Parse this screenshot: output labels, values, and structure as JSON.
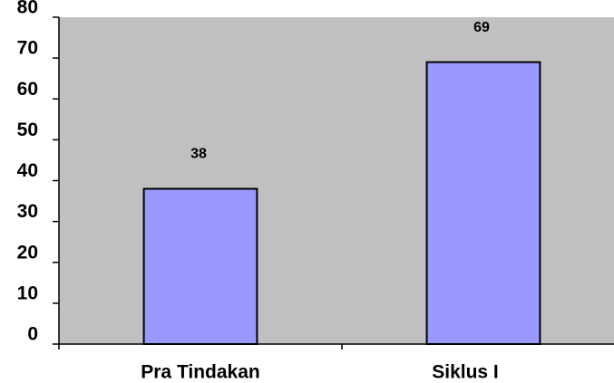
{
  "chart_data": {
    "type": "bar",
    "categories": [
      "Pra Tindakan",
      "Siklus I"
    ],
    "values": [
      38,
      69
    ],
    "color": "#9999ff",
    "ylim": [
      0,
      80
    ],
    "yticks": [
      0,
      10,
      20,
      30,
      40,
      50,
      60,
      70,
      80
    ],
    "grid": false
  }
}
